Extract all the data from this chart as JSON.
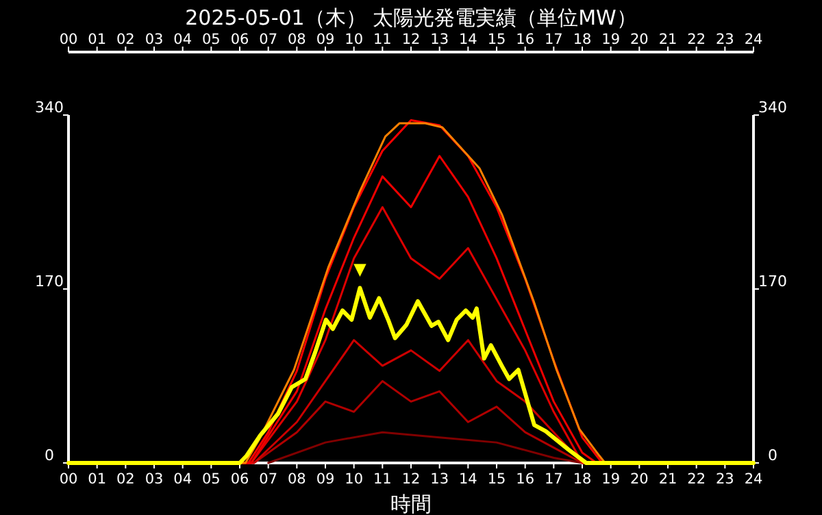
{
  "chart_data": {
    "type": "line",
    "title": "2025-05-01（木） 太陽光発電実績（単位MW）",
    "xlabel": "時間",
    "xlim": [
      0,
      24
    ],
    "xticks": [
      {
        "value": 0,
        "label": "00"
      },
      {
        "value": 1,
        "label": "01"
      },
      {
        "value": 2,
        "label": "02"
      },
      {
        "value": 3,
        "label": "03"
      },
      {
        "value": 4,
        "label": "04"
      },
      {
        "value": 5,
        "label": "05"
      },
      {
        "value": 6,
        "label": "06"
      },
      {
        "value": 7,
        "label": "07"
      },
      {
        "value": 8,
        "label": "08"
      },
      {
        "value": 9,
        "label": "09"
      },
      {
        "value": 10,
        "label": "10"
      },
      {
        "value": 11,
        "label": "11"
      },
      {
        "value": 12,
        "label": "12"
      },
      {
        "value": 13,
        "label": "13"
      },
      {
        "value": 14,
        "label": "14"
      },
      {
        "value": 15,
        "label": "15"
      },
      {
        "value": 16,
        "label": "16"
      },
      {
        "value": 17,
        "label": "17"
      },
      {
        "value": 18,
        "label": "18"
      },
      {
        "value": 19,
        "label": "19"
      },
      {
        "value": 20,
        "label": "20"
      },
      {
        "value": 21,
        "label": "21"
      },
      {
        "value": 22,
        "label": "22"
      },
      {
        "value": 23,
        "label": "23"
      },
      {
        "value": 24,
        "label": "24"
      }
    ],
    "x2lim": [
      0,
      24
    ],
    "x2ticks": [
      {
        "value": 0,
        "label": "00"
      },
      {
        "value": 1,
        "label": "01"
      },
      {
        "value": 2,
        "label": "02"
      },
      {
        "value": 3,
        "label": "03"
      },
      {
        "value": 4,
        "label": "04"
      },
      {
        "value": 5,
        "label": "05"
      },
      {
        "value": 6,
        "label": "06"
      },
      {
        "value": 7,
        "label": "07"
      },
      {
        "value": 8,
        "label": "08"
      },
      {
        "value": 9,
        "label": "09"
      },
      {
        "value": 10,
        "label": "10"
      },
      {
        "value": 11,
        "label": "11"
      },
      {
        "value": 12,
        "label": "12"
      },
      {
        "value": 13,
        "label": "13"
      },
      {
        "value": 14,
        "label": "14"
      },
      {
        "value": 15,
        "label": "15"
      },
      {
        "value": 16,
        "label": "16"
      },
      {
        "value": 17,
        "label": "17"
      },
      {
        "value": 18,
        "label": "18"
      },
      {
        "value": 19,
        "label": "19"
      },
      {
        "value": 20,
        "label": "20"
      },
      {
        "value": 21,
        "label": "21"
      },
      {
        "value": 22,
        "label": "22"
      },
      {
        "value": 23,
        "label": "23"
      },
      {
        "value": 24,
        "label": "24"
      }
    ],
    "ylim": [
      0,
      340
    ],
    "yticks": [
      0,
      170,
      340
    ],
    "y2lim": [
      0,
      340
    ],
    "y2ticks": [
      0,
      170,
      340
    ],
    "series": [
      {
        "color": "#800000",
        "x": [
          7,
          9,
          11,
          13,
          15,
          17,
          18
        ],
        "values": [
          0,
          20,
          30,
          25,
          20,
          5,
          0
        ]
      },
      {
        "color": "#b00000",
        "x": [
          0,
          6.5,
          8,
          9,
          10,
          11,
          12,
          13,
          14,
          15,
          16,
          17,
          18,
          24
        ],
        "values": [
          0,
          0,
          30,
          60,
          50,
          80,
          60,
          70,
          40,
          55,
          30,
          15,
          0,
          0
        ]
      },
      {
        "color": "#cc0000",
        "x": [
          0,
          6.5,
          8,
          9,
          10,
          11,
          12,
          13,
          14,
          15,
          16,
          17,
          18,
          24
        ],
        "values": [
          0,
          0,
          40,
          80,
          120,
          95,
          110,
          90,
          120,
          80,
          60,
          30,
          0,
          0
        ]
      },
      {
        "color": "#dd0000",
        "x": [
          0,
          6.4,
          8,
          9,
          10,
          11,
          12,
          13,
          14,
          15,
          16,
          17,
          18,
          24
        ],
        "values": [
          0,
          0,
          60,
          120,
          200,
          250,
          200,
          180,
          210,
          160,
          110,
          50,
          0,
          0
        ]
      },
      {
        "color": "#ee0000",
        "x": [
          0,
          6.4,
          8,
          9,
          10,
          11,
          12,
          13,
          14,
          15,
          16,
          17,
          18,
          18.5,
          24
        ],
        "values": [
          0,
          0,
          70,
          150,
          220,
          280,
          250,
          300,
          260,
          200,
          130,
          60,
          10,
          0,
          0
        ]
      },
      {
        "color": "#ff0000",
        "x": [
          0,
          6.3,
          7,
          8,
          9,
          10,
          11,
          12,
          13,
          14,
          15,
          16,
          17,
          18,
          18.7,
          24
        ],
        "values": [
          0,
          0,
          30,
          90,
          180,
          250,
          305,
          335,
          330,
          300,
          250,
          180,
          100,
          25,
          0,
          0
        ]
      },
      {
        "color": "#ff8000",
        "x": [
          0,
          6.2,
          6.7,
          7.9,
          9.1,
          10.2,
          11.1,
          11.6,
          12.5,
          13.1,
          14.4,
          15.2,
          16.3,
          17.1,
          17.9,
          18.6,
          18.8,
          24
        ],
        "values": [
          0,
          0,
          24,
          91,
          191,
          265,
          319,
          332,
          332,
          328,
          288,
          242,
          158,
          91,
          33,
          7,
          0,
          0
        ]
      },
      {
        "color": "#ffff00",
        "x": [
          0,
          6.0,
          6.24,
          6.72,
          7.34,
          7.82,
          8.3,
          8.64,
          9.02,
          9.26,
          9.6,
          9.92,
          10.21,
          10.56,
          10.88,
          11.2,
          11.44,
          11.84,
          12.24,
          12.72,
          12.96,
          13.3,
          13.6,
          13.92,
          14.16,
          14.3,
          14.56,
          14.8,
          15.2,
          15.44,
          15.76,
          16.0,
          16.32,
          16.72,
          17.52,
          18.14,
          24
        ],
        "values": [
          0,
          0,
          7,
          27,
          48,
          74,
          82,
          108,
          140,
          131,
          149,
          140,
          171,
          142,
          161,
          140,
          122,
          135,
          158,
          134,
          138,
          120,
          140,
          149,
          142,
          151,
          102,
          115,
          94,
          82,
          91,
          68,
          37,
          31,
          13,
          0,
          0
        ]
      }
    ],
    "annotations": [
      {
        "text": "▼",
        "x": 10.21,
        "y": 171
      }
    ]
  }
}
